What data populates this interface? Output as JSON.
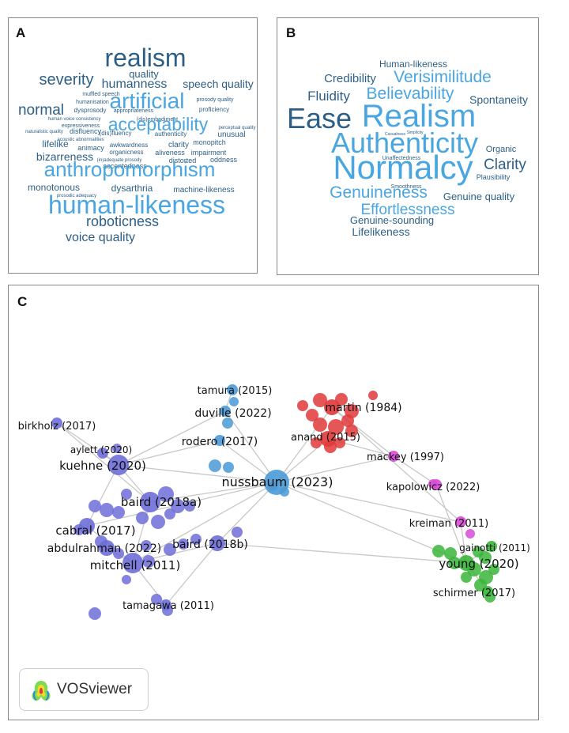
{
  "panels": {
    "a": {
      "letter": "A"
    },
    "b": {
      "letter": "B"
    },
    "c": {
      "letter": "C"
    }
  },
  "colors": {
    "dark_blue": "#2d5f86",
    "light_blue": "#4aa6e1",
    "cluster_purple": "#6e6ed8",
    "cluster_blue": "#4a9ad6",
    "cluster_red": "#e03838",
    "cluster_pink": "#d84ad8",
    "cluster_green": "#3ab53a",
    "edge": "#c8c8c8"
  },
  "wordcloud_a": [
    {
      "text": "realism",
      "color": "dark"
    },
    {
      "text": "quality",
      "color": "dark"
    },
    {
      "text": "severity",
      "color": "dark"
    },
    {
      "text": "humanness",
      "color": "dark"
    },
    {
      "text": "speech quality",
      "color": "dark"
    },
    {
      "text": "artificial",
      "color": "light"
    },
    {
      "text": "muffled speech",
      "color": "dark"
    },
    {
      "text": "humanisation",
      "color": "dark"
    },
    {
      "text": "prosody quality",
      "color": "dark"
    },
    {
      "text": "normal",
      "color": "dark"
    },
    {
      "text": "dysprosody",
      "color": "dark"
    },
    {
      "text": "appropriateness",
      "color": "dark"
    },
    {
      "text": "proficiency",
      "color": "dark"
    },
    {
      "text": "human voice consistency",
      "color": "dark"
    },
    {
      "text": "(dis)embodiment",
      "color": "dark"
    },
    {
      "text": "acceptability",
      "color": "light"
    },
    {
      "text": "expressiveness",
      "color": "dark"
    },
    {
      "text": "perceptual quality",
      "color": "dark"
    },
    {
      "text": "naturalistic quality",
      "color": "dark"
    },
    {
      "text": "disfluency",
      "color": "dark"
    },
    {
      "text": "(dis)fluency",
      "color": "dark"
    },
    {
      "text": "authenticity",
      "color": "dark"
    },
    {
      "text": "unusual",
      "color": "dark"
    },
    {
      "text": "acoustic abnormalities",
      "color": "dark"
    },
    {
      "text": "monopitch",
      "color": "dark"
    },
    {
      "text": "lifelike",
      "color": "dark"
    },
    {
      "text": "awkwardness",
      "color": "dark"
    },
    {
      "text": "clarity",
      "color": "dark"
    },
    {
      "text": "animacy",
      "color": "dark"
    },
    {
      "text": "organicness",
      "color": "dark"
    },
    {
      "text": "aliveness",
      "color": "dark"
    },
    {
      "text": "impairment",
      "color": "dark"
    },
    {
      "text": "bizarreness",
      "color": "dark"
    },
    {
      "text": "(in)adequate prosody",
      "color": "dark"
    },
    {
      "text": "oddness",
      "color": "dark"
    },
    {
      "text": "accentedness",
      "color": "dark"
    },
    {
      "text": "distorted",
      "color": "dark"
    },
    {
      "text": "anthropomorphism",
      "color": "light"
    },
    {
      "text": "monotonous",
      "color": "dark"
    },
    {
      "text": "dysarthria",
      "color": "dark"
    },
    {
      "text": "machine-likeness",
      "color": "dark"
    },
    {
      "text": "prosodic adequacy",
      "color": "dark"
    },
    {
      "text": "human-likeness",
      "color": "light"
    },
    {
      "text": "roboticness",
      "color": "dark"
    },
    {
      "text": "voice quality",
      "color": "dark"
    }
  ],
  "wordcloud_b": [
    {
      "text": "Human-likeness",
      "color": "dark"
    },
    {
      "text": "Credibility",
      "color": "dark"
    },
    {
      "text": "Verisimilitude",
      "color": "light"
    },
    {
      "text": "Fluidity",
      "color": "dark"
    },
    {
      "text": "Believability",
      "color": "light"
    },
    {
      "text": "Spontaneity",
      "color": "dark"
    },
    {
      "text": "Ease",
      "color": "dark"
    },
    {
      "text": "Realism",
      "color": "light"
    },
    {
      "text": "Casualness",
      "color": "dark"
    },
    {
      "text": "Simplicity",
      "color": "dark"
    },
    {
      "text": "Authenticity",
      "color": "light"
    },
    {
      "text": "Organic",
      "color": "dark"
    },
    {
      "text": "Unaffectedness",
      "color": "dark"
    },
    {
      "text": "Normalcy",
      "color": "light"
    },
    {
      "text": "Clarity",
      "color": "dark"
    },
    {
      "text": "Plausibility",
      "color": "dark"
    },
    {
      "text": "Smoothness",
      "color": "dark"
    },
    {
      "text": "Genuineness",
      "color": "light"
    },
    {
      "text": "Genuine quality",
      "color": "dark"
    },
    {
      "text": "Effortlessness",
      "color": "light"
    },
    {
      "text": "Genuine-sounding",
      "color": "dark"
    },
    {
      "text": "Lifelikeness",
      "color": "dark"
    }
  ],
  "network": {
    "nodes": [
      {
        "id": "birkholz",
        "label": "birkholz (2017)",
        "cluster": "purple",
        "size": "small"
      },
      {
        "id": "aylett",
        "label": "aylett (2020)",
        "cluster": "purple",
        "size": "small"
      },
      {
        "id": "kuehne",
        "label": "kuehne (2020)",
        "cluster": "purple",
        "size": "large"
      },
      {
        "id": "baird2018a",
        "label": "baird (2018a)",
        "cluster": "purple",
        "size": "large"
      },
      {
        "id": "cabral",
        "label": "cabral (2017)",
        "cluster": "purple",
        "size": "medium"
      },
      {
        "id": "abdulrahman",
        "label": "abdulrahman (2022)",
        "cluster": "purple",
        "size": "medium"
      },
      {
        "id": "baird2018b",
        "label": "baird (2018b)",
        "cluster": "purple",
        "size": "medium"
      },
      {
        "id": "mitchell",
        "label": "mitchell (2011)",
        "cluster": "purple",
        "size": "large"
      },
      {
        "id": "tamagawa",
        "label": "tamagawa (2011)",
        "cluster": "purple",
        "size": "small"
      },
      {
        "id": "tamura",
        "label": "tamura (2015)",
        "cluster": "blue",
        "size": "small"
      },
      {
        "id": "duville",
        "label": "duville (2022)",
        "cluster": "blue",
        "size": "small"
      },
      {
        "id": "rodero",
        "label": "rodero (2017)",
        "cluster": "blue",
        "size": "small"
      },
      {
        "id": "nussbaum",
        "label": "nussbaum (2023)",
        "cluster": "blue",
        "size": "xlarge"
      },
      {
        "id": "martin",
        "label": "martin (1984)",
        "cluster": "red",
        "size": "medium"
      },
      {
        "id": "anand",
        "label": "anand (2015)",
        "cluster": "red",
        "size": "medium"
      },
      {
        "id": "mackey",
        "label": "mackey (1997)",
        "cluster": "pink",
        "size": "small"
      },
      {
        "id": "kapolowicz",
        "label": "kapolowicz (2022)",
        "cluster": "pink",
        "size": "small"
      },
      {
        "id": "kreiman",
        "label": "kreiman (2011)",
        "cluster": "pink",
        "size": "small"
      },
      {
        "id": "gainotti",
        "label": "gainotti (2011)",
        "cluster": "green",
        "size": "small"
      },
      {
        "id": "young",
        "label": "young (2020)",
        "cluster": "green",
        "size": "medium"
      },
      {
        "id": "schirmer",
        "label": "schirmer (2017)",
        "cluster": "green",
        "size": "small"
      }
    ],
    "badge": {
      "text": "VOSviewer"
    }
  }
}
